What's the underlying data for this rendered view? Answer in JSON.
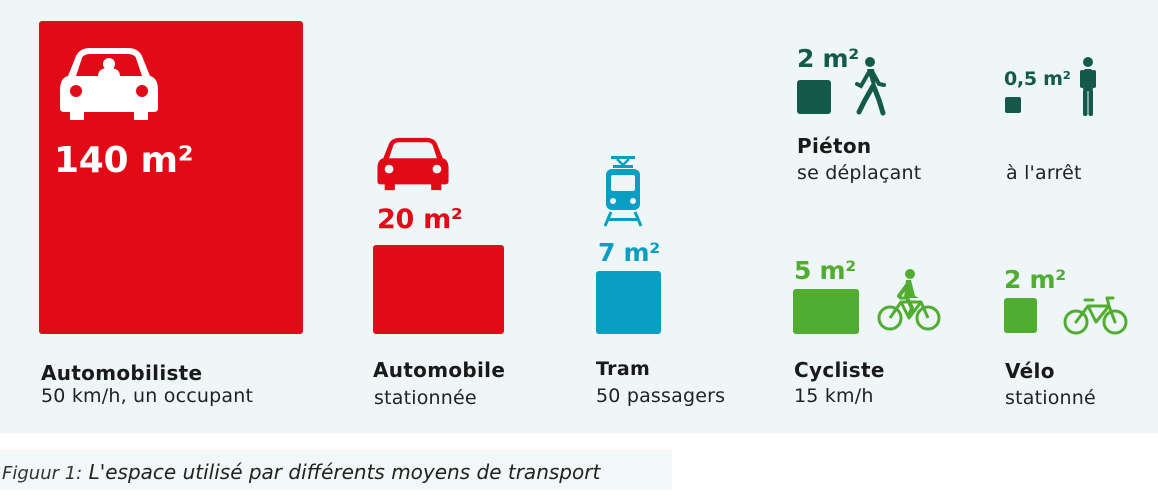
{
  "colors": {
    "car_red": "#e20a16",
    "tram_blue": "#0a9ec5",
    "pedestrian_green": "#145a4b",
    "bike_green": "#51ad32",
    "panel_bg": "#eef6f7"
  },
  "items": [
    {
      "id": "automobiliste",
      "area": "140 m²",
      "title": "Automobiliste",
      "subtitle": "50 km/h, un occupant",
      "icon": "car-icon"
    },
    {
      "id": "automobile",
      "area": "20 m²",
      "title": "Automobile",
      "subtitle": "stationnée",
      "icon": "car-icon"
    },
    {
      "id": "tram",
      "area": "7 m²",
      "title": "Tram",
      "subtitle": "50 passagers",
      "icon": "tram-icon"
    },
    {
      "id": "pieton-move",
      "area": "2 m²",
      "title": "Piéton",
      "subtitle": "se déplaçant",
      "icon": "walking-person-icon"
    },
    {
      "id": "pieton-stop",
      "area": "0,5 m²",
      "title": "",
      "subtitle": "à l'arrêt",
      "icon": "standing-person-icon"
    },
    {
      "id": "cycliste",
      "area": "5 m²",
      "title": "Cycliste",
      "subtitle": "15 km/h",
      "icon": "cyclist-icon"
    },
    {
      "id": "velo",
      "area": "2 m²",
      "title": "Vélo",
      "subtitle": "stationné",
      "icon": "bicycle-icon"
    }
  ],
  "caption": {
    "label": "Figuur 1:",
    "text": "L'espace utilisé par différents moyens de transport"
  }
}
